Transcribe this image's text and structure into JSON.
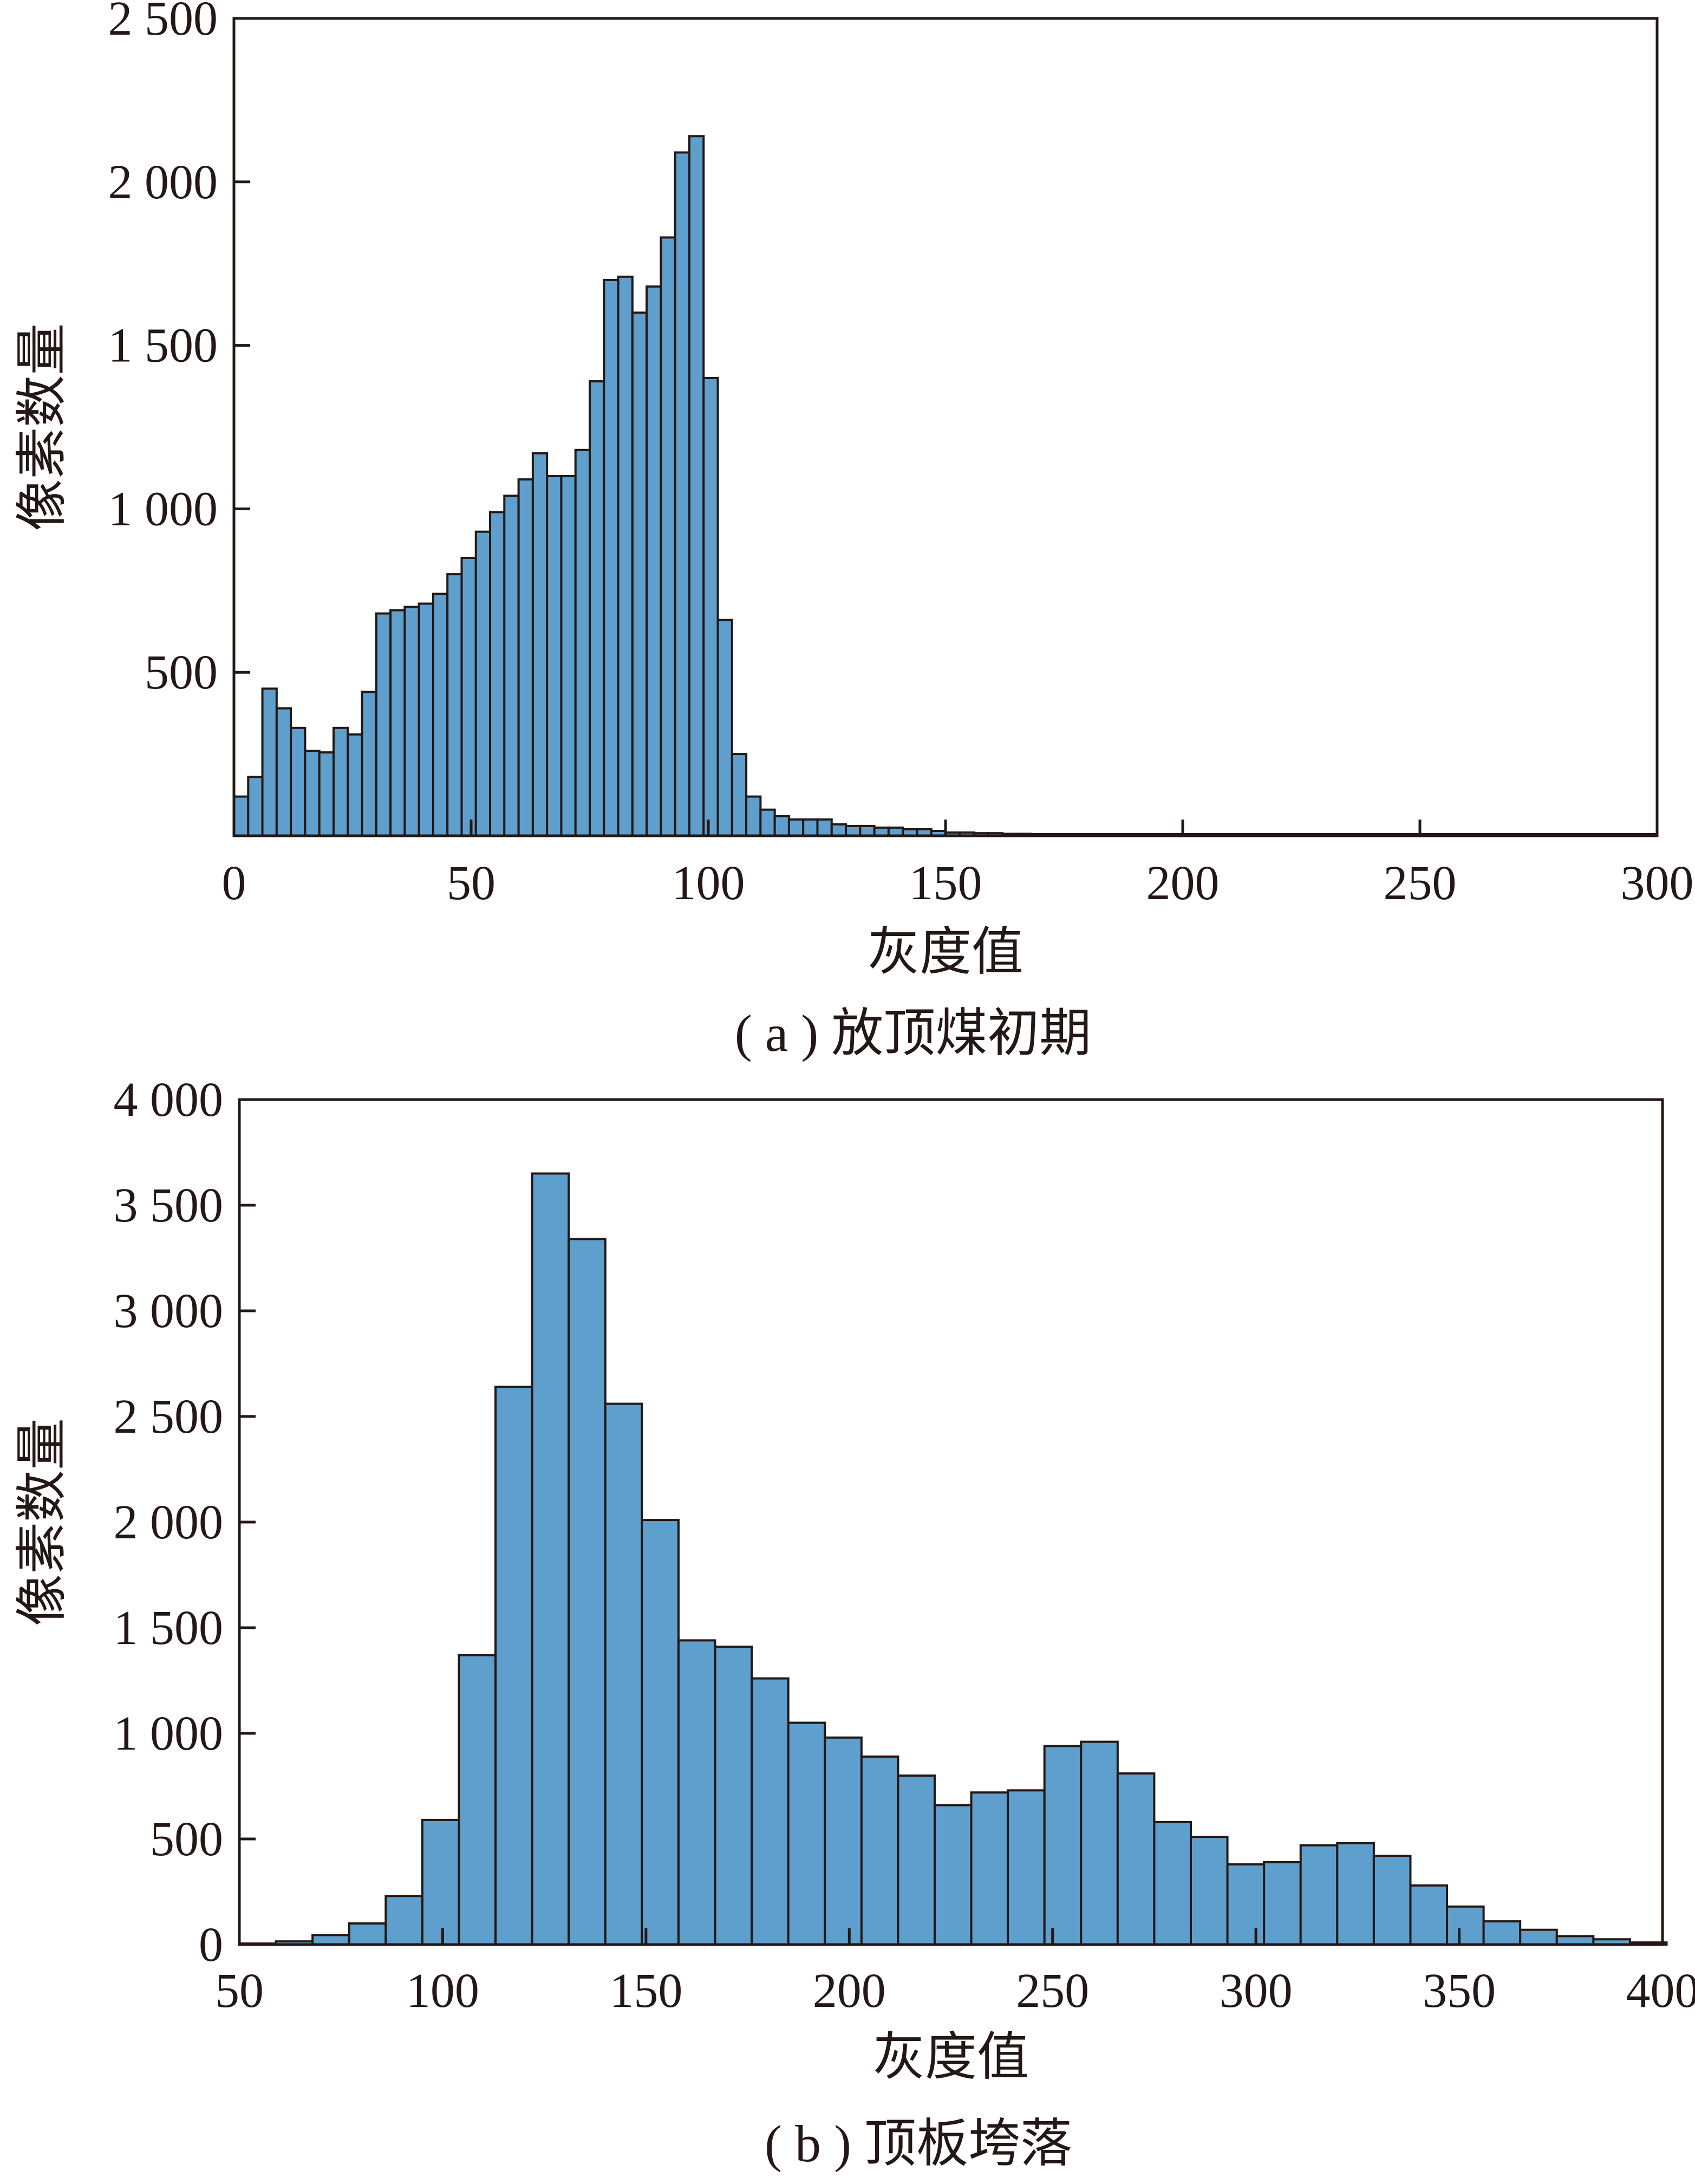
{
  "colors": {
    "bar_fill": "#5f9fcd",
    "ink": "#231815"
  },
  "chart_data": [
    {
      "type": "bar",
      "histogram": true,
      "caption": "( a ) 放顶煤初期",
      "xlabel": "灰度值",
      "ylabel": "像素数量",
      "xlim": [
        0,
        300
      ],
      "ylim": [
        0,
        2500
      ],
      "x_ticks": [
        0,
        50,
        100,
        150,
        200,
        250,
        300
      ],
      "x_tick_labels": [
        "0",
        "50",
        "100",
        "150",
        "200",
        "250",
        "300"
      ],
      "y_ticks": [
        500,
        1000,
        1500,
        2000,
        2500
      ],
      "y_tick_labels": [
        "500",
        "1 000",
        "1 500",
        "2 000",
        "2 500"
      ],
      "bin_start": 0,
      "bin_width": 3,
      "values": [
        120,
        180,
        450,
        390,
        330,
        260,
        255,
        330,
        310,
        440,
        680,
        690,
        700,
        710,
        740,
        800,
        850,
        930,
        990,
        1040,
        1090,
        1170,
        1100,
        1100,
        1180,
        1390,
        1700,
        1710,
        1600,
        1680,
        1830,
        2090,
        2140,
        1400,
        660,
        250,
        120,
        80,
        60,
        50,
        50,
        50,
        35,
        30,
        30,
        25,
        25,
        20,
        20,
        15,
        10,
        10,
        8,
        8,
        6,
        6,
        5,
        5,
        5,
        5,
        5,
        5,
        5,
        5,
        5,
        5,
        5,
        5,
        5,
        5,
        5,
        5,
        5,
        5,
        5,
        5,
        5,
        5,
        5,
        5,
        5,
        5,
        5,
        5,
        5,
        5,
        5,
        5,
        5,
        5,
        5,
        5,
        5,
        5,
        5,
        5,
        5,
        5,
        5,
        5
      ]
    },
    {
      "type": "bar",
      "histogram": true,
      "caption": "( b ) 顶板垮落",
      "xlabel": "灰度值",
      "ylabel": "像素数量",
      "xlim": [
        50,
        400
      ],
      "ylim": [
        0,
        4000
      ],
      "x_ticks": [
        50,
        100,
        150,
        200,
        250,
        300,
        350,
        400
      ],
      "x_tick_labels": [
        "50",
        "100",
        "150",
        "200",
        "250",
        "300",
        "350",
        "400"
      ],
      "y_ticks": [
        0,
        500,
        1000,
        1500,
        2000,
        2500,
        3000,
        3500,
        4000
      ],
      "y_tick_labels": [
        "0",
        "500",
        "1 000",
        "1 500",
        "2 000",
        "2 500",
        "3 000",
        "3 500",
        "4 000"
      ],
      "bin_start": 50,
      "bin_width": 9,
      "values": [
        5,
        15,
        45,
        100,
        230,
        590,
        1370,
        2640,
        3650,
        3340,
        2560,
        2010,
        1440,
        1410,
        1260,
        1050,
        980,
        890,
        800,
        660,
        720,
        730,
        940,
        960,
        810,
        580,
        510,
        380,
        390,
        470,
        480,
        420,
        280,
        180,
        110,
        70,
        40,
        25,
        10
      ]
    }
  ]
}
